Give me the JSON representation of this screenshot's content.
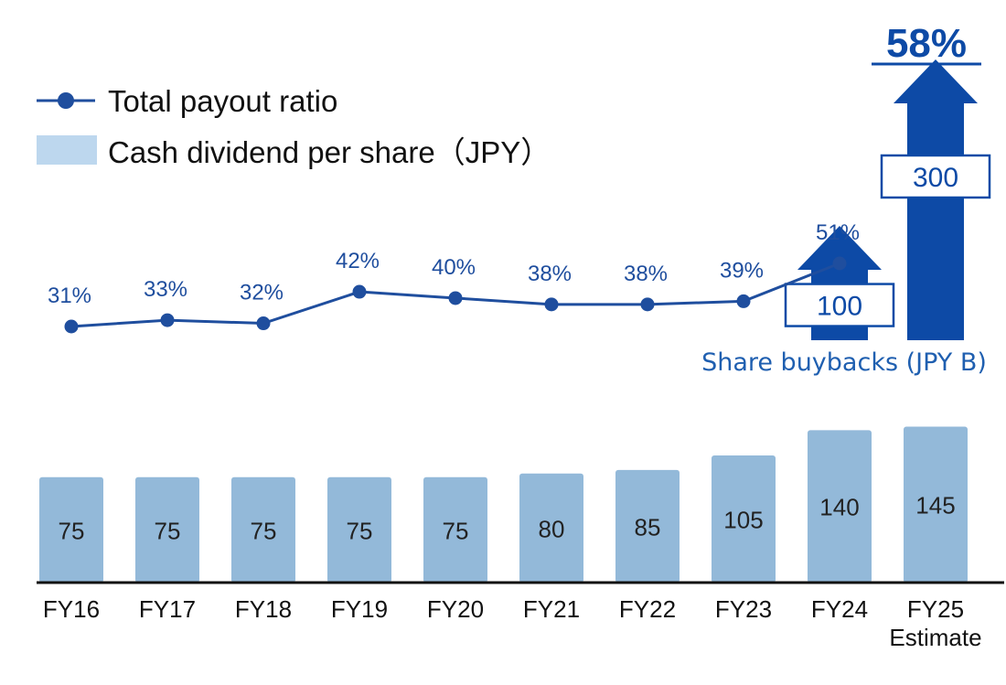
{
  "chart_data": {
    "type": "bar",
    "title": "",
    "categories": [
      "FY16",
      "FY17",
      "FY18",
      "FY19",
      "FY20",
      "FY21",
      "FY22",
      "FY23",
      "FY24",
      "FY25"
    ],
    "category_sublabels": [
      "",
      "",
      "",
      "",
      "",
      "",
      "",
      "",
      "",
      "Estimate"
    ],
    "series": [
      {
        "name": "Cash dividend per share（JPY）",
        "type": "bar",
        "values": [
          75,
          75,
          75,
          75,
          75,
          80,
          85,
          105,
          140,
          145
        ],
        "labels": [
          "75",
          "75",
          "75",
          "75",
          "75",
          "80",
          "85",
          "105",
          "140",
          "145"
        ],
        "color": "#93b9d9"
      },
      {
        "name": "Total payout ratio",
        "type": "line",
        "values": [
          31,
          33,
          32,
          42,
          40,
          38,
          38,
          39,
          51,
          null
        ],
        "labels": [
          "31%",
          "33%",
          "32%",
          "42%",
          "40%",
          "38%",
          "38%",
          "39%",
          "51%",
          ""
        ],
        "color": "#1f4e9e"
      }
    ],
    "share_buybacks": {
      "caption": "Share buybacks (JPY B)",
      "items": [
        {
          "category": "FY24",
          "value": 100,
          "label": "100"
        },
        {
          "category": "FY25",
          "value": 300,
          "label": "300"
        }
      ],
      "color": "#0d4aa6"
    },
    "fy25_payout_ratio": {
      "value": 58,
      "label": "58%"
    },
    "legend": {
      "position": "top-left",
      "line_label": "Total payout ratio",
      "bar_label": "Cash dividend per share（JPY）"
    },
    "xlabel": "",
    "ylabel": "",
    "grid": false
  }
}
